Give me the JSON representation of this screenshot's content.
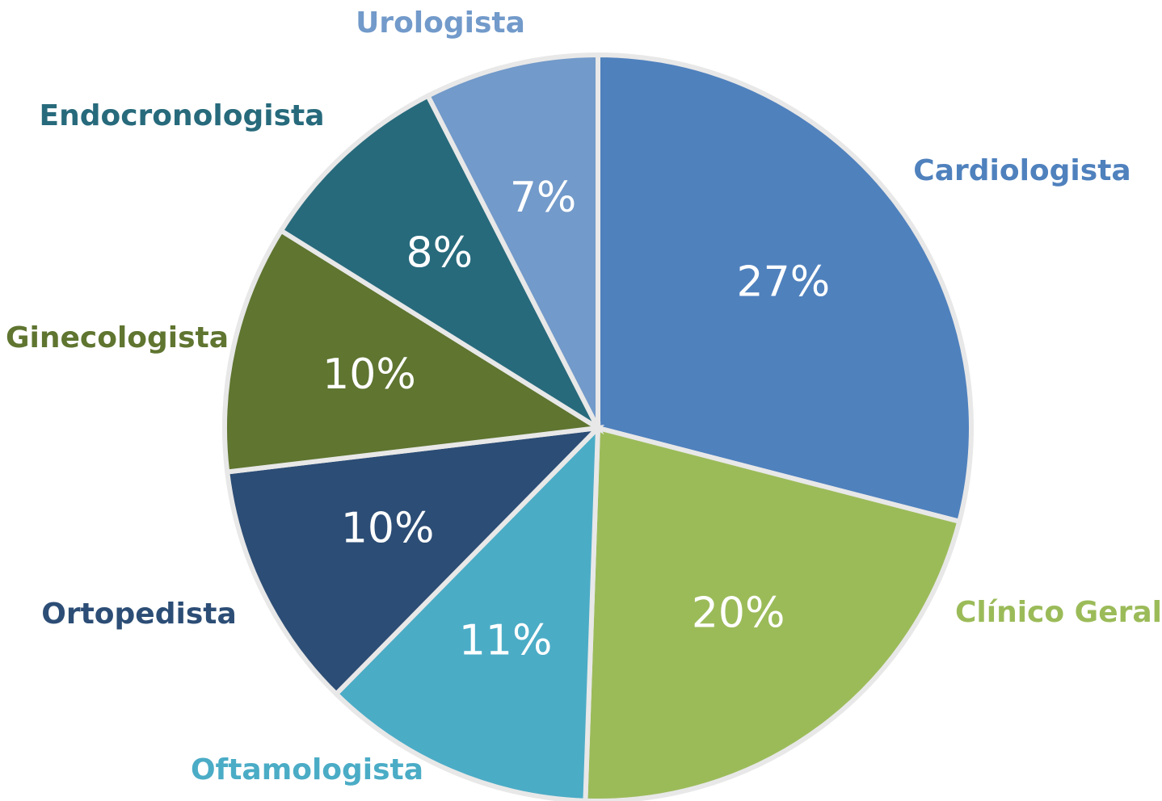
{
  "chart_data": {
    "type": "pie",
    "categories": [
      "Cardiologista",
      "Clínico Geral",
      "Oftamologista",
      "Ortopedista",
      "Ginecologista",
      "Endocronologista",
      "Urologista"
    ],
    "values": [
      27,
      20,
      11,
      10,
      10,
      8,
      7
    ],
    "value_labels": [
      "27%",
      "20%",
      "11%",
      "10%",
      "10%",
      "8%",
      "7%"
    ],
    "colors": [
      "#4f81bd",
      "#9bbb59",
      "#4bacc6",
      "#2c4d75",
      "#5f7530",
      "#276a7c",
      "#729aca"
    ]
  }
}
